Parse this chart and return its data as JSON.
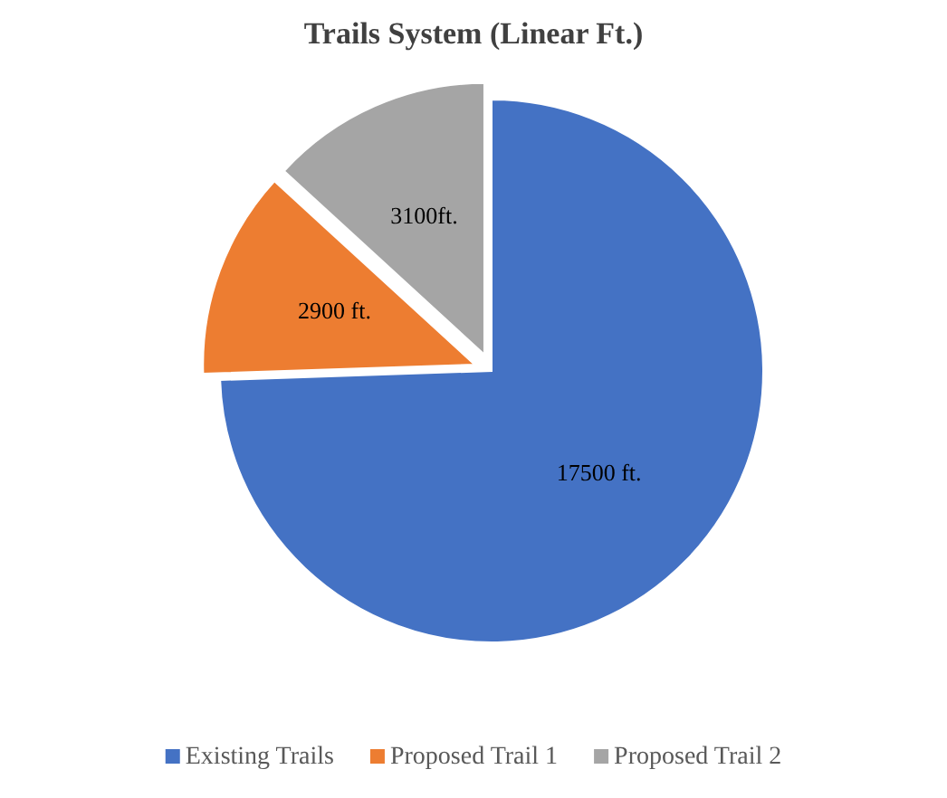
{
  "chart_data": {
    "type": "pie",
    "title": "Trails System (Linear Ft.)",
    "categories": [
      "Existing Trails",
      "Proposed Trail 1",
      "Proposed Trail 2"
    ],
    "values": [
      17500,
      2900,
      3100
    ],
    "value_labels": [
      "17500 ft.",
      "2900 ft.",
      "3100ft."
    ],
    "colors": [
      "#4472c4",
      "#ed7d31",
      "#a5a5a5"
    ],
    "legend": "bottom"
  }
}
